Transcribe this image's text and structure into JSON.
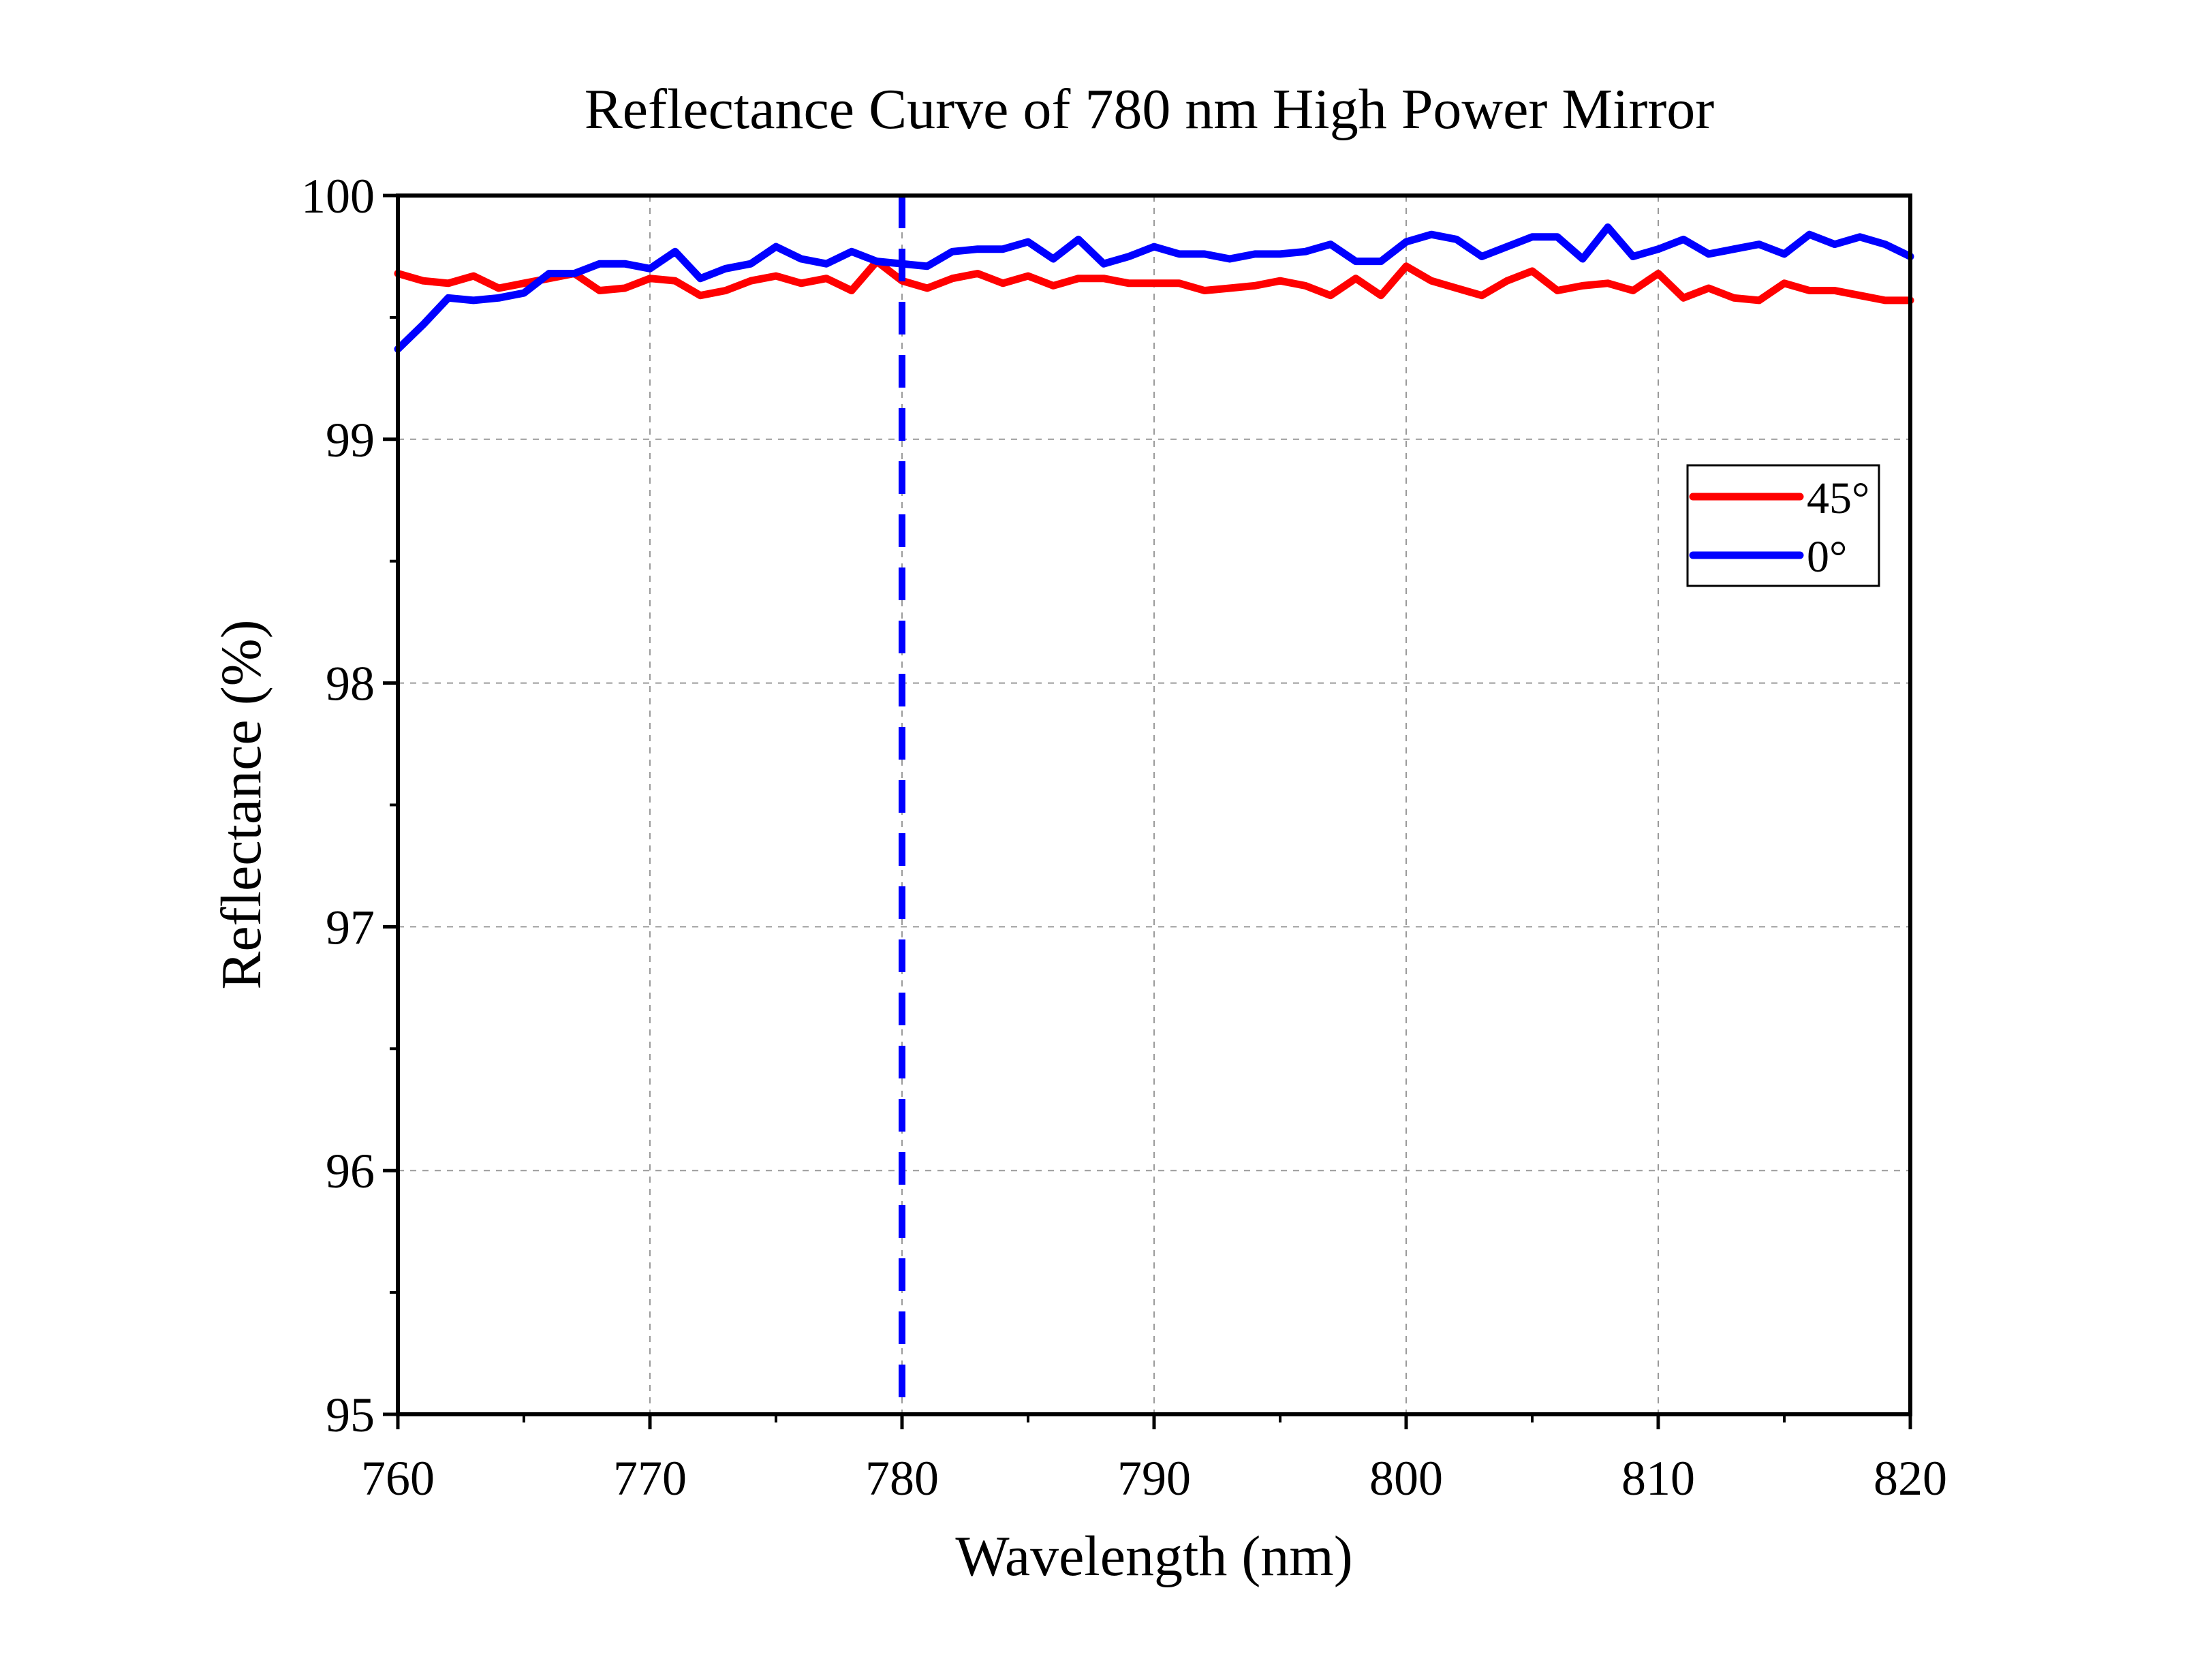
{
  "chart_data": {
    "type": "line",
    "title": "Reflectance Curve of 780 nm High Power Mirror",
    "xlabel": "Wavelength (nm)",
    "ylabel": "Reflectance (%)",
    "xlim": [
      760,
      820
    ],
    "ylim": [
      95,
      100
    ],
    "xticks": [
      760,
      770,
      780,
      790,
      800,
      810,
      820
    ],
    "yticks": [
      95,
      96,
      97,
      98,
      99,
      100
    ],
    "grid": true,
    "legend_position": "upper-right",
    "reference_line": {
      "x": 780,
      "color": "#0000ff",
      "style": "dashed"
    },
    "x": [
      760,
      761,
      762,
      763,
      764,
      765,
      766,
      767,
      768,
      769,
      770,
      771,
      772,
      773,
      774,
      775,
      776,
      777,
      778,
      779,
      780,
      781,
      782,
      783,
      784,
      785,
      786,
      787,
      788,
      789,
      790,
      791,
      792,
      793,
      794,
      795,
      796,
      797,
      798,
      799,
      800,
      801,
      802,
      803,
      804,
      805,
      806,
      807,
      808,
      809,
      810,
      811,
      812,
      813,
      814,
      815,
      816,
      817,
      818,
      819,
      820
    ],
    "series": [
      {
        "name": "45°",
        "color": "#ff0000",
        "values": [
          99.68,
          99.65,
          99.64,
          99.67,
          99.62,
          99.64,
          99.66,
          99.68,
          99.61,
          99.62,
          99.66,
          99.65,
          99.59,
          99.61,
          99.65,
          99.67,
          99.64,
          99.66,
          99.61,
          99.73,
          99.65,
          99.62,
          99.66,
          99.68,
          99.64,
          99.67,
          99.63,
          99.66,
          99.66,
          99.64,
          99.64,
          99.64,
          99.61,
          99.62,
          99.63,
          99.65,
          99.63,
          99.59,
          99.66,
          99.59,
          99.71,
          99.65,
          99.62,
          99.59,
          99.65,
          99.69,
          99.61,
          99.63,
          99.64,
          99.61,
          99.68,
          99.58,
          99.62,
          99.58,
          99.57,
          99.64,
          99.61,
          99.61,
          99.59,
          99.57,
          99.57
        ]
      },
      {
        "name": "0°",
        "color": "#0000ff",
        "values": [
          99.37,
          99.47,
          99.58,
          99.57,
          99.58,
          99.6,
          99.68,
          99.68,
          99.72,
          99.72,
          99.7,
          99.77,
          99.66,
          99.7,
          99.72,
          99.79,
          99.74,
          99.72,
          99.77,
          99.73,
          99.72,
          99.71,
          99.77,
          99.78,
          99.78,
          99.81,
          99.74,
          99.82,
          99.72,
          99.75,
          99.79,
          99.76,
          99.76,
          99.74,
          99.76,
          99.76,
          99.77,
          99.8,
          99.73,
          99.73,
          99.81,
          99.84,
          99.82,
          99.75,
          99.79,
          99.83,
          99.83,
          99.74,
          99.87,
          99.75,
          99.78,
          99.82,
          99.76,
          99.78,
          99.8,
          99.76,
          99.84,
          99.8,
          99.83,
          99.8,
          99.75
        ]
      }
    ]
  }
}
